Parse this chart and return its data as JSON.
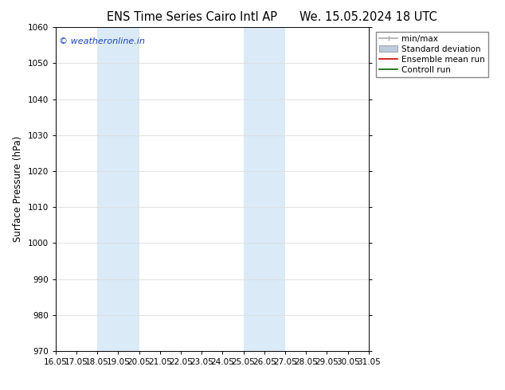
{
  "title_left": "ENS Time Series Cairo Intl AP",
  "title_right": "We. 15.05.2024 18 UTC",
  "ylabel": "Surface Pressure (hPa)",
  "ylim": [
    970,
    1060
  ],
  "yticks": [
    970,
    980,
    990,
    1000,
    1010,
    1020,
    1030,
    1040,
    1050,
    1060
  ],
  "x_tick_labels": [
    "16.05",
    "17.05",
    "18.05",
    "19.05",
    "20.05",
    "21.05",
    "22.05",
    "23.05",
    "24.05",
    "25.05",
    "26.05",
    "27.05",
    "28.05",
    "29.05",
    "30.05",
    "31.05"
  ],
  "x_tick_values": [
    0,
    1,
    2,
    3,
    4,
    5,
    6,
    7,
    8,
    9,
    10,
    11,
    12,
    13,
    14,
    15
  ],
  "shade_regions": [
    {
      "x_start": 2,
      "x_end": 4,
      "color": "#daeaf7"
    },
    {
      "x_start": 9,
      "x_end": 11,
      "color": "#daeaf7"
    }
  ],
  "watermark_text": "© weatheronline.in",
  "watermark_color": "#1a44bb",
  "legend_items": [
    {
      "label": "min/max",
      "color": "#aaaaaa",
      "lw": 1.2,
      "style": "errbar"
    },
    {
      "label": "Standard deviation",
      "color": "#bbccdd",
      "lw": 6,
      "style": "box"
    },
    {
      "label": "Ensemble mean run",
      "color": "#cc0000",
      "lw": 1.2,
      "style": "line"
    },
    {
      "label": "Controll run",
      "color": "#006600",
      "lw": 1.2,
      "style": "line"
    }
  ],
  "bg_color": "#ffffff",
  "grid_color": "#dddddd",
  "title_fontsize": 10.5,
  "tick_fontsize": 7.5,
  "ylabel_fontsize": 8.5,
  "watermark_fontsize": 8,
  "legend_fontsize": 7.5
}
